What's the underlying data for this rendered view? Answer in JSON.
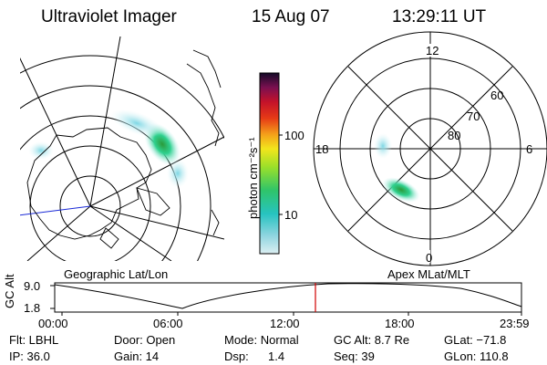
{
  "header": {
    "instrument": "Ultraviolet Imager",
    "date": "15 Aug 07",
    "time": "13:29:11 UT"
  },
  "colorbar": {
    "unit_label": "photon cm⁻²s⁻¹",
    "ticks": [
      "100",
      "10"
    ],
    "scale": "log"
  },
  "geo_panel": {
    "label": "Geographic Lat/Lon"
  },
  "mag_panel": {
    "label": "Apex MLat/MLT",
    "mlt_labels": {
      "top": "12",
      "right": "6",
      "bottom": "0",
      "left": "18"
    },
    "lat_labels": [
      "60",
      "70",
      "80"
    ]
  },
  "altitude_plot": {
    "ylabel": "GC Alt",
    "yticks": [
      "9.0",
      "1.8"
    ],
    "xticks": [
      "00:00",
      "06:00",
      "12:00",
      "18:00",
      "23:59"
    ],
    "current_time_marker": "13:29"
  },
  "footer": {
    "flt": "Flt: LBHL",
    "door": "Door: Open",
    "mode": "Mode: Normal",
    "gcalt": "GC Alt: 8.7 Re",
    "glat": "GLat: −71.8",
    "ip": "IP: 36.0",
    "gain": "Gain: 14",
    "dsp_label": "Dsp:",
    "dsp_value": "1.4",
    "seq": "Seq: 39",
    "glon": "GLon: 110.8"
  },
  "colors": {
    "background": "#ffffff",
    "ink": "#000000",
    "time_marker": "#d00000",
    "longitude_line": "#1a2ad6"
  }
}
